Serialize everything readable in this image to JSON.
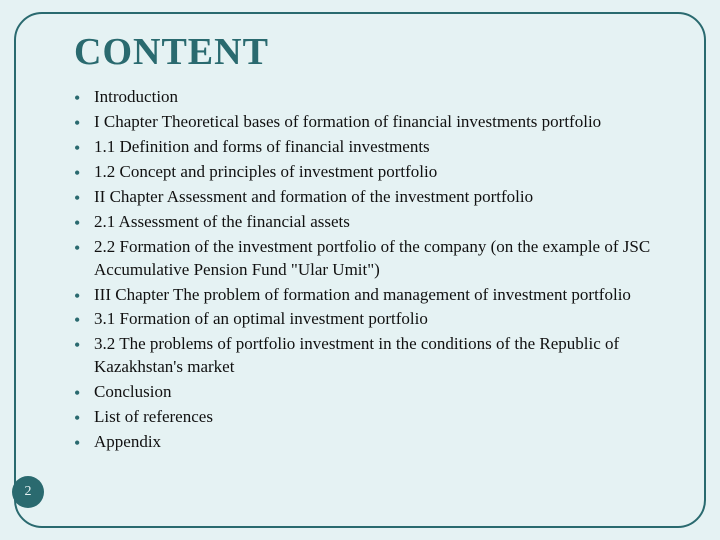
{
  "slide": {
    "title": "CONTENT",
    "page_number": "2",
    "background_color": "#e5f2f3",
    "accent_color": "#2a6a6f",
    "title_fontsize": 38,
    "body_fontsize": 17,
    "items": [
      "Introduction",
      "I Chapter Theoretical bases of formation of financial investments portfolio",
      "1.1 Definition and forms of financial investments",
      "1.2 Concept and principles of investment portfolio",
      "II Chapter Assessment and formation of the investment portfolio",
      "2.1 Assessment of the financial assets",
      "2.2 Formation of the investment portfolio of the company (on the example of JSC Accumulative Pension Fund \"Ular Umit\")",
      "III Chapter The problem of formation and management of investment portfolio",
      "3.1 Formation of an optimal investment portfolio",
      "3.2 The problems of portfolio investment in the conditions of the Republic of Kazakhstan's market",
      "Conclusion",
      "List of references",
      "Appendix"
    ]
  }
}
